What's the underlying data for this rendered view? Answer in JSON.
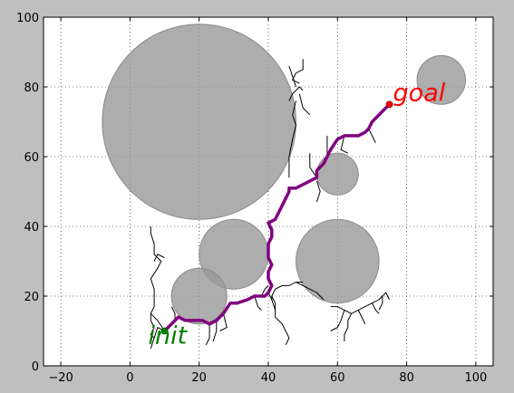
{
  "chart_data": {
    "type": "scatter",
    "title": "",
    "xlabel": "",
    "ylabel": "",
    "xlim": [
      -25,
      105
    ],
    "ylim": [
      0,
      100
    ],
    "xticks": [
      -20,
      0,
      20,
      40,
      60,
      80,
      100
    ],
    "yticks": [
      0,
      20,
      40,
      60,
      80,
      100
    ],
    "xtick_labels": [
      "−20",
      "0",
      "20",
      "40",
      "60",
      "80",
      "100"
    ],
    "ytick_labels": [
      "0",
      "20",
      "40",
      "60",
      "80",
      "100"
    ],
    "grid": true,
    "obstacles": [
      {
        "cx": 20,
        "cy": 70,
        "r": 28
      },
      {
        "cx": 30,
        "cy": 32,
        "r": 10
      },
      {
        "cx": 60,
        "cy": 30,
        "r": 12
      },
      {
        "cx": 20,
        "cy": 20,
        "r": 8
      },
      {
        "cx": 60,
        "cy": 55,
        "r": 6
      },
      {
        "cx": 90,
        "cy": 82,
        "r": 7
      }
    ],
    "start": {
      "x": 10,
      "y": 10,
      "label": "init"
    },
    "goal": {
      "x": 75,
      "y": 75,
      "label": "goal"
    },
    "path": [
      [
        10,
        10
      ],
      [
        11,
        11
      ],
      [
        12,
        12
      ],
      [
        13,
        13
      ],
      [
        14,
        14
      ],
      [
        16,
        13
      ],
      [
        18,
        13
      ],
      [
        21,
        13
      ],
      [
        23,
        12
      ],
      [
        25,
        13
      ],
      [
        27,
        15
      ],
      [
        29,
        18
      ],
      [
        31,
        18
      ],
      [
        34,
        19
      ],
      [
        36,
        20
      ],
      [
        39,
        20
      ],
      [
        40,
        21
      ],
      [
        41,
        23
      ],
      [
        40,
        25
      ],
      [
        40,
        27
      ],
      [
        41,
        29
      ],
      [
        40,
        31
      ],
      [
        40,
        33
      ],
      [
        40,
        35
      ],
      [
        41,
        37
      ],
      [
        41,
        39
      ],
      [
        40,
        41
      ],
      [
        42,
        42
      ],
      [
        43,
        44
      ],
      [
        44,
        46
      ],
      [
        45,
        48
      ],
      [
        46,
        50
      ],
      [
        46,
        51
      ],
      [
        48,
        51
      ],
      [
        50,
        52
      ],
      [
        52,
        53
      ],
      [
        54,
        54
      ],
      [
        54,
        56
      ],
      [
        56,
        58
      ],
      [
        57,
        60
      ],
      [
        58,
        62
      ],
      [
        60,
        65
      ],
      [
        62,
        66
      ],
      [
        64,
        66
      ],
      [
        66,
        66
      ],
      [
        68,
        67
      ],
      [
        69,
        68
      ],
      [
        70,
        70
      ],
      [
        72,
        72
      ],
      [
        73,
        73
      ],
      [
        74,
        74
      ],
      [
        75,
        75
      ]
    ],
    "tree_branches": [
      [
        [
          46,
          54
        ],
        [
          46,
          60
        ],
        [
          47,
          65
        ],
        [
          48,
          69
        ],
        [
          47,
          72
        ],
        [
          48,
          76
        ]
      ],
      [
        [
          46,
          76
        ],
        [
          47,
          78
        ],
        [
          48,
          79
        ],
        [
          49,
          80
        ],
        [
          50,
          79
        ]
      ],
      [
        [
          48,
          80
        ],
        [
          47,
          83
        ],
        [
          46,
          86
        ]
      ],
      [
        [
          49,
          78
        ],
        [
          50,
          74
        ],
        [
          52,
          72
        ]
      ],
      [
        [
          57,
          60
        ],
        [
          57,
          63
        ],
        [
          57,
          66
        ]
      ],
      [
        [
          54,
          54
        ],
        [
          52,
          57
        ],
        [
          52,
          61
        ]
      ],
      [
        [
          49,
          81
        ],
        [
          47,
          82
        ],
        [
          48,
          84
        ],
        [
          50,
          85
        ],
        [
          50,
          88
        ]
      ],
      [
        [
          69,
          68
        ],
        [
          70,
          66
        ],
        [
          71,
          64
        ]
      ],
      [
        [
          62,
          66
        ],
        [
          61,
          62
        ],
        [
          63,
          61
        ]
      ],
      [
        [
          54,
          53
        ],
        [
          55,
          50
        ],
        [
          54,
          47
        ]
      ],
      [
        [
          10,
          10
        ],
        [
          8,
          11
        ],
        [
          7,
          8
        ],
        [
          6,
          5
        ]
      ],
      [
        [
          10,
          10
        ],
        [
          8,
          13
        ],
        [
          6,
          15
        ]
      ],
      [
        [
          7,
          8
        ],
        [
          6,
          9
        ],
        [
          7,
          11
        ],
        [
          6,
          13
        ],
        [
          6,
          15
        ],
        [
          7,
          17
        ],
        [
          7,
          19
        ]
      ],
      [
        [
          7,
          19
        ],
        [
          7,
          22
        ],
        [
          6,
          25
        ],
        [
          8,
          28
        ],
        [
          9,
          30
        ],
        [
          7,
          32
        ],
        [
          7,
          35
        ],
        [
          6,
          38
        ],
        [
          6,
          40
        ]
      ],
      [
        [
          7,
          30
        ],
        [
          8,
          32
        ],
        [
          10,
          31
        ]
      ],
      [
        [
          13,
          13
        ],
        [
          13,
          15
        ],
        [
          12,
          17
        ]
      ],
      [
        [
          23,
          12
        ],
        [
          23,
          8
        ],
        [
          22,
          6
        ]
      ],
      [
        [
          27,
          15
        ],
        [
          28,
          11
        ],
        [
          26,
          10
        ]
      ],
      [
        [
          25,
          13
        ],
        [
          25,
          10
        ],
        [
          24,
          7
        ]
      ],
      [
        [
          40,
          21
        ],
        [
          41,
          19
        ],
        [
          42,
          16
        ],
        [
          42,
          14
        ],
        [
          44,
          12
        ],
        [
          45,
          10
        ],
        [
          46,
          8
        ],
        [
          45,
          6
        ]
      ],
      [
        [
          41,
          19
        ],
        [
          41,
          20
        ],
        [
          42,
          22
        ],
        [
          44,
          23
        ],
        [
          46,
          23
        ],
        [
          48,
          24
        ],
        [
          50,
          24
        ]
      ],
      [
        [
          48,
          24
        ],
        [
          50,
          23
        ],
        [
          52,
          22
        ],
        [
          54,
          21
        ],
        [
          55,
          20
        ],
        [
          56,
          19
        ]
      ],
      [
        [
          42,
          16
        ],
        [
          42,
          18
        ],
        [
          41,
          20
        ]
      ],
      [
        [
          40,
          23
        ],
        [
          39,
          22
        ],
        [
          38,
          20
        ]
      ],
      [
        [
          36,
          20
        ],
        [
          37,
          17
        ],
        [
          38,
          16
        ]
      ],
      [
        [
          58,
          17
        ],
        [
          60,
          17
        ],
        [
          62,
          16
        ],
        [
          64,
          15
        ],
        [
          66,
          16
        ],
        [
          68,
          17
        ],
        [
          70,
          18
        ],
        [
          72,
          19
        ],
        [
          73,
          20
        ],
        [
          73,
          18
        ],
        [
          72,
          16
        ]
      ],
      [
        [
          64,
          15
        ],
        [
          63,
          13
        ],
        [
          63,
          11
        ],
        [
          62,
          9
        ],
        [
          62,
          7
        ]
      ],
      [
        [
          62,
          16
        ],
        [
          61,
          13
        ],
        [
          60,
          11
        ],
        [
          58,
          10
        ]
      ],
      [
        [
          66,
          16
        ],
        [
          67,
          14
        ],
        [
          68,
          12
        ]
      ],
      [
        [
          70,
          18
        ],
        [
          71,
          16
        ],
        [
          72,
          15
        ]
      ],
      [
        [
          72,
          19
        ],
        [
          73,
          20
        ],
        [
          74,
          21
        ],
        [
          75,
          19
        ]
      ]
    ]
  }
}
